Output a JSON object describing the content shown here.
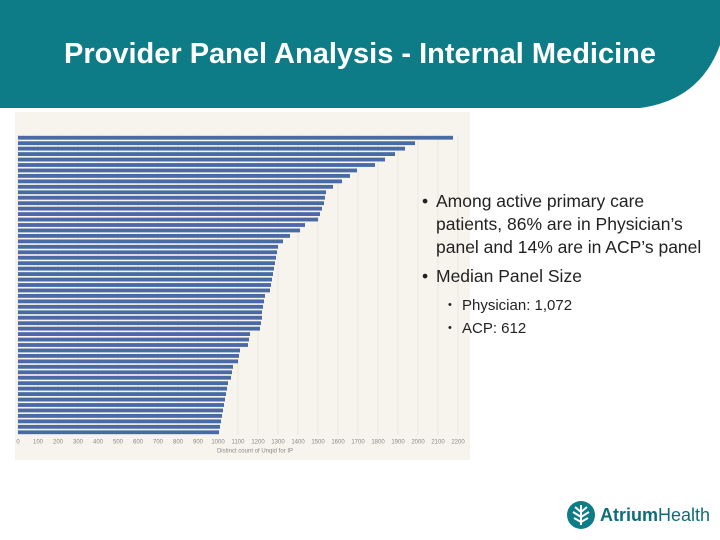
{
  "header": {
    "title": "Provider Panel Analysis - Internal Medicine"
  },
  "chart_data": {
    "type": "bar",
    "orientation": "horizontal",
    "values": [
      2175,
      1985,
      1935,
      1885,
      1835,
      1785,
      1695,
      1660,
      1620,
      1575,
      1540,
      1535,
      1530,
      1520,
      1510,
      1500,
      1435,
      1410,
      1360,
      1325,
      1300,
      1295,
      1290,
      1285,
      1280,
      1275,
      1270,
      1265,
      1260,
      1235,
      1230,
      1225,
      1220,
      1220,
      1215,
      1210,
      1160,
      1155,
      1150,
      1110,
      1105,
      1100,
      1075,
      1070,
      1065,
      1050,
      1045,
      1040,
      1035,
      1030,
      1025,
      1020,
      1015,
      1010,
      1005
    ],
    "color": "#4a6aa5",
    "xlim": [
      0,
      2200
    ],
    "xticks": [
      0,
      100,
      200,
      300,
      400,
      500,
      600,
      700,
      800,
      900,
      1000,
      1100,
      1200,
      1300,
      1400,
      1500,
      1600,
      1700,
      1800,
      1900,
      2000,
      2100,
      2200
    ],
    "xlabel": "Distinct count of Unqid for IP",
    "grid": true
  },
  "bullets": [
    {
      "text": "Among active primary care patients, 86% are in Physician’s panel and 14% are in ACP’s panel",
      "sub": []
    },
    {
      "text": "Median Panel Size",
      "sub": [
        "Physician: 1,072",
        "ACP: 612"
      ]
    }
  ],
  "logo": {
    "name": "Atrium",
    "suffix": "Health"
  }
}
